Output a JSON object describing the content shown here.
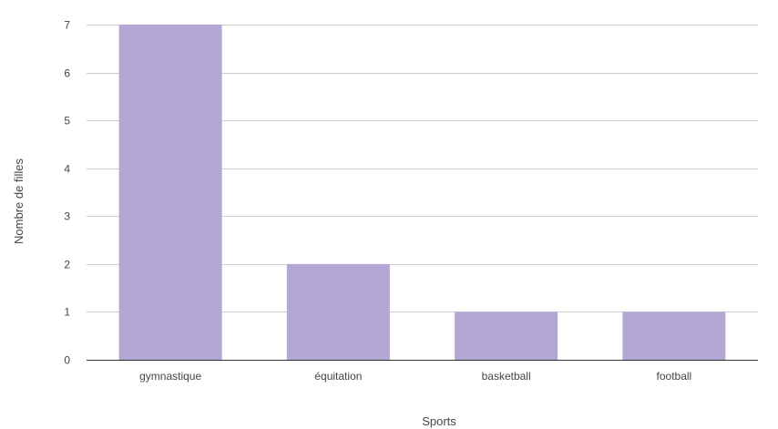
{
  "chart_data": {
    "type": "bar",
    "title": "",
    "xlabel": "Sports",
    "ylabel": "Nombre de filles",
    "categories": [
      "gymnastique",
      "équitation",
      "basketball",
      "football"
    ],
    "values": [
      7,
      2,
      1,
      1
    ],
    "ylim": [
      0,
      7
    ],
    "yticks": [
      0,
      1,
      2,
      3,
      4,
      5,
      6,
      7
    ],
    "grid": true,
    "legend": "none",
    "colors": {
      "bar": "#b4a7d6",
      "grid": "#cccccc",
      "axis": "#333333",
      "text": "#444444"
    }
  }
}
